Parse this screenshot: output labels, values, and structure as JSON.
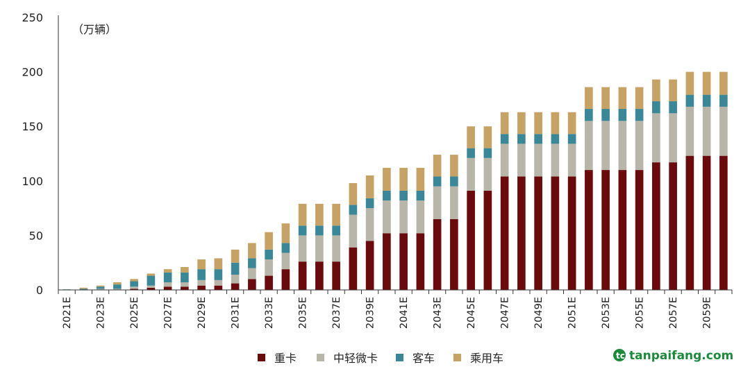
{
  "chart_data": {
    "type": "bar",
    "stacked": true,
    "unit_label": "（万辆）",
    "ylim": [
      0,
      250
    ],
    "yticks": [
      0,
      50,
      100,
      150,
      200,
      250
    ],
    "categories": [
      "2021E",
      "2022E",
      "2023E",
      "2024E",
      "2025E",
      "2026E",
      "2027E",
      "2028E",
      "2029E",
      "2030E",
      "2031E",
      "2032E",
      "2033E",
      "2034E",
      "2035E",
      "2036E",
      "2037E",
      "2038E",
      "2039E",
      "2040E",
      "2041E",
      "2042E",
      "2043E",
      "2044E",
      "2045E",
      "2046E",
      "2047E",
      "2048E",
      "2049E",
      "2050E",
      "2051E",
      "2052E",
      "2053E",
      "2054E",
      "2055E",
      "2056E",
      "2057E",
      "2058E",
      "2059E",
      "2060E"
    ],
    "tick_labels": [
      "2021E",
      "",
      "2023E",
      "",
      "2025E",
      "",
      "2027E",
      "",
      "2029E",
      "",
      "2031E",
      "",
      "2033E",
      "",
      "2035E",
      "",
      "2037E",
      "",
      "2039E",
      "",
      "2041E",
      "",
      "2043E",
      "",
      "2045E",
      "",
      "2047E",
      "",
      "2049E",
      "",
      "2051E",
      "",
      "2053E",
      "",
      "2055E",
      "",
      "2057E",
      "",
      "2059E",
      ""
    ],
    "series": [
      {
        "name": "重卡",
        "color": "#6b0a0d",
        "values": [
          0,
          0,
          0,
          0,
          1,
          2,
          3,
          3,
          4,
          4,
          6,
          10,
          13,
          19,
          26,
          26,
          26,
          39,
          45,
          52,
          52,
          52,
          65,
          65,
          91,
          91,
          104,
          104,
          104,
          104,
          104,
          110,
          110,
          110,
          110,
          117,
          117,
          123,
          123,
          123
        ]
      },
      {
        "name": "中轻微卡",
        "color": "#b8b6a8",
        "values": [
          0,
          0,
          1,
          1,
          2,
          2,
          4,
          4,
          5,
          5,
          8,
          10,
          15,
          15,
          24,
          24,
          24,
          30,
          30,
          30,
          30,
          30,
          30,
          30,
          30,
          30,
          30,
          30,
          30,
          30,
          30,
          45,
          45,
          45,
          45,
          45,
          45,
          45,
          45,
          45
        ]
      },
      {
        "name": "客车",
        "color": "#3a8797",
        "values": [
          0.5,
          1,
          2,
          4,
          5,
          9,
          9,
          9,
          10,
          10,
          11,
          9,
          9,
          9,
          9,
          9,
          9,
          9,
          9,
          9,
          9,
          9,
          9,
          9,
          9,
          9,
          9,
          9,
          9,
          9,
          9,
          11,
          11,
          11,
          11,
          11,
          11,
          11,
          11,
          11
        ]
      },
      {
        "name": "乘用车",
        "color": "#c6a364",
        "values": [
          0,
          1,
          1,
          2,
          2,
          2,
          3,
          5,
          9,
          10,
          12,
          14,
          16,
          18,
          20,
          20,
          20,
          20,
          21,
          21,
          21,
          21,
          20,
          20,
          20,
          20,
          20,
          20,
          20,
          20,
          20,
          20,
          20,
          20,
          20,
          20,
          20,
          21,
          21,
          21
        ]
      }
    ]
  },
  "watermark": {
    "text": "tanpaifang.com",
    "color": "#1b8a3a"
  }
}
